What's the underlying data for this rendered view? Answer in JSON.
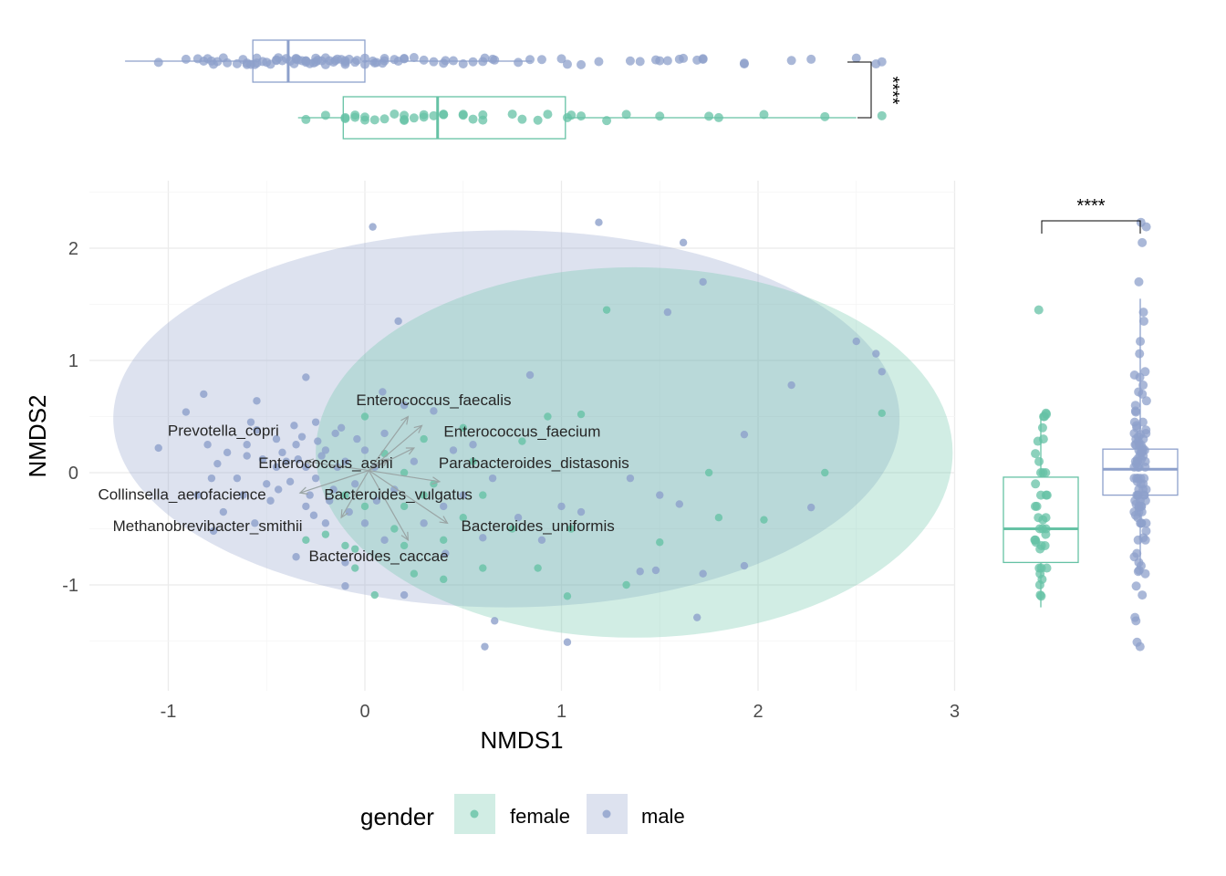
{
  "chart_data": {
    "type": "scatter",
    "xlabel": "NMDS1",
    "ylabel": "NMDS2",
    "xticks": [
      -1,
      0,
      1,
      2,
      3
    ],
    "yticks": [
      -1,
      0,
      1,
      2
    ],
    "xlim": [
      -1.38,
      3.0
    ],
    "ylim": [
      -1.95,
      2.55
    ],
    "grid": true,
    "legend": {
      "title": "gender",
      "position": "bottom",
      "entries": [
        "female",
        "male"
      ]
    },
    "colors": {
      "female": "#66c2a5",
      "male": "#8da0cb",
      "arrow": "#9aa5a5",
      "text": "#262626"
    },
    "significance": {
      "top": "****",
      "right": "****"
    },
    "ellipses": [
      {
        "group": "male",
        "cx": 0.72,
        "cy": 0.48,
        "rx": 2.0,
        "ry": 1.68
      },
      {
        "group": "female",
        "cx": 1.37,
        "cy": 0.18,
        "rx": 1.62,
        "ry": 1.65
      }
    ],
    "species_vectors": [
      {
        "name": "Enterococcus_faecalis",
        "x": 0.22,
        "y": 0.5,
        "lx": 0.35,
        "ly": 0.65
      },
      {
        "name": "Prevotella_copri",
        "x": -0.3,
        "y": 0.1,
        "lx": -0.72,
        "ly": 0.38
      },
      {
        "name": "Enterococcus_faecium",
        "x": 0.29,
        "y": 0.42,
        "lx": 0.8,
        "ly": 0.37
      },
      {
        "name": "Parabacteroides_distasonis",
        "x": 0.25,
        "y": 0.22,
        "lx": 0.86,
        "ly": 0.09
      },
      {
        "name": "Enterococcus_asini",
        "x": 0.12,
        "y": 0.12,
        "lx": -0.2,
        "ly": 0.09
      },
      {
        "name": "Bacteroides_vulgatus",
        "x": 0.38,
        "y": -0.08,
        "lx": 0.17,
        "ly": -0.19
      },
      {
        "name": "Collinsella_aerofacience",
        "x": -0.33,
        "y": -0.18,
        "lx": -0.93,
        "ly": -0.19
      },
      {
        "name": "Bacteroides_uniformis",
        "x": 0.42,
        "y": -0.45,
        "lx": 0.88,
        "ly": -0.47
      },
      {
        "name": "Methanobrevibacter_smithii",
        "x": -0.12,
        "y": -0.4,
        "lx": -0.8,
        "ly": -0.47
      },
      {
        "name": "Bacteroides_caccae",
        "x": 0.22,
        "y": -0.6,
        "lx": 0.07,
        "ly": -0.74
      }
    ],
    "series": [
      {
        "name": "female",
        "points": [
          [
            1.23,
            1.45
          ],
          [
            1.1,
            0.52
          ],
          [
            0.93,
            0.5
          ],
          [
            0.5,
            0.4
          ],
          [
            0.8,
            0.28
          ],
          [
            0.55,
            0.1
          ],
          [
            0.1,
            0.17
          ],
          [
            0.2,
            0.0
          ],
          [
            0.35,
            -0.1
          ],
          [
            0.0,
            -0.3
          ],
          [
            0.2,
            -0.3
          ],
          [
            0.5,
            -0.4
          ],
          [
            0.4,
            -0.6
          ],
          [
            0.4,
            -0.95
          ],
          [
            0.25,
            -0.9
          ],
          [
            0.6,
            -0.85
          ],
          [
            0.88,
            -0.85
          ],
          [
            1.05,
            -0.5
          ],
          [
            1.03,
            -1.1
          ],
          [
            1.33,
            -1.0
          ],
          [
            1.5,
            -0.62
          ],
          [
            1.8,
            -0.4
          ],
          [
            2.03,
            -0.42
          ],
          [
            2.34,
            0.0
          ],
          [
            2.63,
            0.53
          ],
          [
            1.75,
            0.0
          ],
          [
            0.05,
            -1.09
          ],
          [
            -0.05,
            -0.85
          ],
          [
            -0.2,
            -0.55
          ],
          [
            0.15,
            -0.5
          ],
          [
            -0.1,
            -0.2
          ],
          [
            0.3,
            0.3
          ],
          [
            0.0,
            0.5
          ],
          [
            0.6,
            -0.2
          ],
          [
            -0.1,
            -0.65
          ],
          [
            0.3,
            -0.2
          ],
          [
            0.75,
            -0.5
          ],
          [
            0.2,
            -0.65
          ],
          [
            -0.05,
            -0.68
          ],
          [
            -0.3,
            -0.6
          ]
        ]
      },
      {
        "name": "male",
        "points": [
          [
            0.04,
            2.19
          ],
          [
            1.19,
            2.23
          ],
          [
            1.62,
            2.05
          ],
          [
            1.72,
            1.7
          ],
          [
            1.54,
            1.43
          ],
          [
            0.17,
            1.35
          ],
          [
            2.5,
            1.17
          ],
          [
            2.6,
            1.06
          ],
          [
            2.63,
            0.9
          ],
          [
            2.17,
            0.78
          ],
          [
            0.84,
            0.87
          ],
          [
            0.09,
            0.72
          ],
          [
            -0.3,
            0.85
          ],
          [
            -0.55,
            0.64
          ],
          [
            -0.82,
            0.7
          ],
          [
            -0.91,
            0.54
          ],
          [
            -1.05,
            0.22
          ],
          [
            -0.8,
            0.25
          ],
          [
            -0.75,
            0.08
          ],
          [
            -0.78,
            -0.05
          ],
          [
            -0.85,
            -0.2
          ],
          [
            -0.72,
            -0.35
          ],
          [
            -0.77,
            -0.52
          ],
          [
            -0.56,
            -0.45
          ],
          [
            -0.35,
            -0.75
          ],
          [
            -0.1,
            -0.8
          ],
          [
            -0.1,
            -1.01
          ],
          [
            0.2,
            -1.09
          ],
          [
            0.41,
            -0.72
          ],
          [
            0.6,
            -0.58
          ],
          [
            0.78,
            -0.4
          ],
          [
            0.9,
            -0.6
          ],
          [
            1.0,
            -0.3
          ],
          [
            1.1,
            -0.35
          ],
          [
            1.5,
            -0.2
          ],
          [
            1.6,
            -0.28
          ],
          [
            1.4,
            -0.88
          ],
          [
            1.48,
            -0.87
          ],
          [
            1.72,
            -0.9
          ],
          [
            1.93,
            -0.83
          ],
          [
            1.69,
            -1.29
          ],
          [
            0.66,
            -1.32
          ],
          [
            0.61,
            -1.55
          ],
          [
            1.03,
            -1.51
          ],
          [
            2.27,
            -0.31
          ],
          [
            1.93,
            0.34
          ],
          [
            1.35,
            -0.05
          ],
          [
            0.65,
            -0.05
          ],
          [
            -0.25,
            0.45
          ],
          [
            -0.45,
            0.3
          ],
          [
            -0.6,
            0.15
          ],
          [
            -0.5,
            -0.1
          ],
          [
            -0.4,
            0.1
          ],
          [
            -0.35,
            0.25
          ],
          [
            -0.3,
            0.05
          ],
          [
            -0.25,
            -0.05
          ],
          [
            -0.2,
            0.2
          ],
          [
            -0.15,
            0.35
          ],
          [
            -0.1,
            0.1
          ],
          [
            -0.05,
            -0.1
          ],
          [
            0.0,
            0.2
          ],
          [
            -0.45,
            0.05
          ],
          [
            -0.42,
            0.18
          ],
          [
            -0.38,
            -0.08
          ],
          [
            -0.32,
            0.32
          ],
          [
            -0.28,
            -0.2
          ],
          [
            -0.22,
            0.15
          ],
          [
            -0.18,
            -0.25
          ],
          [
            -0.12,
            0.4
          ],
          [
            -0.08,
            -0.35
          ],
          [
            0.05,
            0.05
          ],
          [
            0.1,
            0.35
          ],
          [
            0.15,
            -0.15
          ],
          [
            -0.55,
            0.38
          ],
          [
            -0.65,
            -0.05
          ],
          [
            -0.6,
            0.25
          ],
          [
            -0.48,
            -0.25
          ],
          [
            -0.36,
            0.42
          ],
          [
            -0.26,
            -0.38
          ],
          [
            -0.16,
            -0.15
          ],
          [
            -0.52,
            0.12
          ],
          [
            -0.44,
            -0.15
          ],
          [
            -0.34,
            0.12
          ],
          [
            -0.24,
            0.28
          ],
          [
            -0.14,
            0.05
          ],
          [
            -0.04,
            0.3
          ],
          [
            0.06,
            -0.25
          ],
          [
            -0.7,
            0.18
          ],
          [
            -0.62,
            -0.2
          ],
          [
            -0.58,
            0.45
          ],
          [
            0.25,
            0.1
          ],
          [
            0.3,
            -0.45
          ],
          [
            0.35,
            0.55
          ],
          [
            0.45,
            0.2
          ],
          [
            0.0,
            -0.45
          ],
          [
            -0.2,
            -0.45
          ],
          [
            0.1,
            -0.6
          ],
          [
            0.5,
            -0.2
          ],
          [
            0.55,
            0.25
          ],
          [
            -0.3,
            -0.3
          ],
          [
            0.2,
            0.6
          ],
          [
            0.4,
            -0.3
          ]
        ]
      }
    ],
    "marginals": {
      "NMDS1": {
        "female": {
          "q1": -0.11,
          "median": 0.37,
          "q3": 1.02,
          "whisker_low": -0.34,
          "whisker_high": 2.5
        },
        "male": {
          "q1": -0.57,
          "median": -0.39,
          "q3": 0.0,
          "whisker_low": -1.22,
          "whisker_high": 0.85
        }
      },
      "NMDS2": {
        "female": {
          "q1": -0.8,
          "median": -0.5,
          "q3": -0.04,
          "whisker_low": -1.2,
          "whisker_high": 0.52
        },
        "male": {
          "q1": -0.2,
          "median": 0.03,
          "q3": 0.21,
          "whisker_low": -0.9,
          "whisker_high": 1.55
        }
      }
    }
  }
}
